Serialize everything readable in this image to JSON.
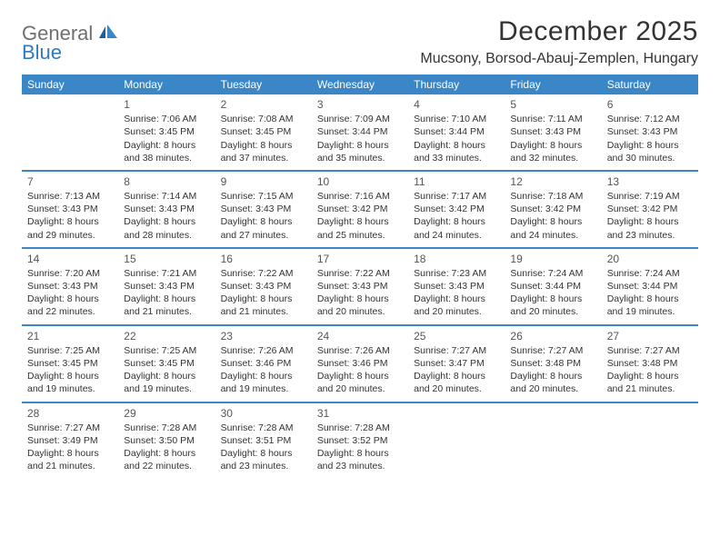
{
  "brand": {
    "part1": "General",
    "part2": "Blue"
  },
  "header": {
    "month_title": "December 2025",
    "location": "Mucsony, Borsod-Abauj-Zemplen, Hungary"
  },
  "colors": {
    "header_bar": "#3b86c6",
    "row_divider": "#3b86c6",
    "text": "#333333",
    "logo_gray": "#6f6f6f",
    "logo_blue": "#2f7ac0",
    "background": "#ffffff"
  },
  "days_of_week": [
    "Sunday",
    "Monday",
    "Tuesday",
    "Wednesday",
    "Thursday",
    "Friday",
    "Saturday"
  ],
  "weeks": [
    [
      null,
      {
        "n": "1",
        "sunrise": "7:06 AM",
        "sunset": "3:45 PM",
        "daylight1": "Daylight: 8 hours",
        "daylight2": "and 38 minutes."
      },
      {
        "n": "2",
        "sunrise": "7:08 AM",
        "sunset": "3:45 PM",
        "daylight1": "Daylight: 8 hours",
        "daylight2": "and 37 minutes."
      },
      {
        "n": "3",
        "sunrise": "7:09 AM",
        "sunset": "3:44 PM",
        "daylight1": "Daylight: 8 hours",
        "daylight2": "and 35 minutes."
      },
      {
        "n": "4",
        "sunrise": "7:10 AM",
        "sunset": "3:44 PM",
        "daylight1": "Daylight: 8 hours",
        "daylight2": "and 33 minutes."
      },
      {
        "n": "5",
        "sunrise": "7:11 AM",
        "sunset": "3:43 PM",
        "daylight1": "Daylight: 8 hours",
        "daylight2": "and 32 minutes."
      },
      {
        "n": "6",
        "sunrise": "7:12 AM",
        "sunset": "3:43 PM",
        "daylight1": "Daylight: 8 hours",
        "daylight2": "and 30 minutes."
      }
    ],
    [
      {
        "n": "7",
        "sunrise": "7:13 AM",
        "sunset": "3:43 PM",
        "daylight1": "Daylight: 8 hours",
        "daylight2": "and 29 minutes."
      },
      {
        "n": "8",
        "sunrise": "7:14 AM",
        "sunset": "3:43 PM",
        "daylight1": "Daylight: 8 hours",
        "daylight2": "and 28 minutes."
      },
      {
        "n": "9",
        "sunrise": "7:15 AM",
        "sunset": "3:43 PM",
        "daylight1": "Daylight: 8 hours",
        "daylight2": "and 27 minutes."
      },
      {
        "n": "10",
        "sunrise": "7:16 AM",
        "sunset": "3:42 PM",
        "daylight1": "Daylight: 8 hours",
        "daylight2": "and 25 minutes."
      },
      {
        "n": "11",
        "sunrise": "7:17 AM",
        "sunset": "3:42 PM",
        "daylight1": "Daylight: 8 hours",
        "daylight2": "and 24 minutes."
      },
      {
        "n": "12",
        "sunrise": "7:18 AM",
        "sunset": "3:42 PM",
        "daylight1": "Daylight: 8 hours",
        "daylight2": "and 24 minutes."
      },
      {
        "n": "13",
        "sunrise": "7:19 AM",
        "sunset": "3:42 PM",
        "daylight1": "Daylight: 8 hours",
        "daylight2": "and 23 minutes."
      }
    ],
    [
      {
        "n": "14",
        "sunrise": "7:20 AM",
        "sunset": "3:43 PM",
        "daylight1": "Daylight: 8 hours",
        "daylight2": "and 22 minutes."
      },
      {
        "n": "15",
        "sunrise": "7:21 AM",
        "sunset": "3:43 PM",
        "daylight1": "Daylight: 8 hours",
        "daylight2": "and 21 minutes."
      },
      {
        "n": "16",
        "sunrise": "7:22 AM",
        "sunset": "3:43 PM",
        "daylight1": "Daylight: 8 hours",
        "daylight2": "and 21 minutes."
      },
      {
        "n": "17",
        "sunrise": "7:22 AM",
        "sunset": "3:43 PM",
        "daylight1": "Daylight: 8 hours",
        "daylight2": "and 20 minutes."
      },
      {
        "n": "18",
        "sunrise": "7:23 AM",
        "sunset": "3:43 PM",
        "daylight1": "Daylight: 8 hours",
        "daylight2": "and 20 minutes."
      },
      {
        "n": "19",
        "sunrise": "7:24 AM",
        "sunset": "3:44 PM",
        "daylight1": "Daylight: 8 hours",
        "daylight2": "and 20 minutes."
      },
      {
        "n": "20",
        "sunrise": "7:24 AM",
        "sunset": "3:44 PM",
        "daylight1": "Daylight: 8 hours",
        "daylight2": "and 19 minutes."
      }
    ],
    [
      {
        "n": "21",
        "sunrise": "7:25 AM",
        "sunset": "3:45 PM",
        "daylight1": "Daylight: 8 hours",
        "daylight2": "and 19 minutes."
      },
      {
        "n": "22",
        "sunrise": "7:25 AM",
        "sunset": "3:45 PM",
        "daylight1": "Daylight: 8 hours",
        "daylight2": "and 19 minutes."
      },
      {
        "n": "23",
        "sunrise": "7:26 AM",
        "sunset": "3:46 PM",
        "daylight1": "Daylight: 8 hours",
        "daylight2": "and 19 minutes."
      },
      {
        "n": "24",
        "sunrise": "7:26 AM",
        "sunset": "3:46 PM",
        "daylight1": "Daylight: 8 hours",
        "daylight2": "and 20 minutes."
      },
      {
        "n": "25",
        "sunrise": "7:27 AM",
        "sunset": "3:47 PM",
        "daylight1": "Daylight: 8 hours",
        "daylight2": "and 20 minutes."
      },
      {
        "n": "26",
        "sunrise": "7:27 AM",
        "sunset": "3:48 PM",
        "daylight1": "Daylight: 8 hours",
        "daylight2": "and 20 minutes."
      },
      {
        "n": "27",
        "sunrise": "7:27 AM",
        "sunset": "3:48 PM",
        "daylight1": "Daylight: 8 hours",
        "daylight2": "and 21 minutes."
      }
    ],
    [
      {
        "n": "28",
        "sunrise": "7:27 AM",
        "sunset": "3:49 PM",
        "daylight1": "Daylight: 8 hours",
        "daylight2": "and 21 minutes."
      },
      {
        "n": "29",
        "sunrise": "7:28 AM",
        "sunset": "3:50 PM",
        "daylight1": "Daylight: 8 hours",
        "daylight2": "and 22 minutes."
      },
      {
        "n": "30",
        "sunrise": "7:28 AM",
        "sunset": "3:51 PM",
        "daylight1": "Daylight: 8 hours",
        "daylight2": "and 23 minutes."
      },
      {
        "n": "31",
        "sunrise": "7:28 AM",
        "sunset": "3:52 PM",
        "daylight1": "Daylight: 8 hours",
        "daylight2": "and 23 minutes."
      },
      null,
      null,
      null
    ]
  ],
  "labels": {
    "sunrise_prefix": "Sunrise: ",
    "sunset_prefix": "Sunset: "
  }
}
